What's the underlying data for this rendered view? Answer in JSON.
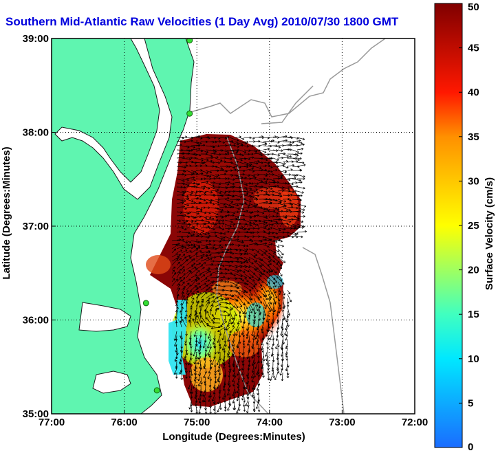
{
  "chart_data": {
    "type": "heatmap",
    "title": "Southern Mid-Atlantic Raw Velocities (1 Day Avg) 2010/07/30 1800 GMT",
    "xlabel": "Longitude (Degrees:Minutes)",
    "ylabel": "Latitude (Degrees:Minutes)",
    "xlim": [
      -77,
      -72
    ],
    "ylim": [
      35,
      39
    ],
    "x_ticks": [
      {
        "value": -77,
        "label": "77:00"
      },
      {
        "value": -76,
        "label": "76:00"
      },
      {
        "value": -75,
        "label": "75:00"
      },
      {
        "value": -74,
        "label": "74:00"
      },
      {
        "value": -73,
        "label": "73:00"
      },
      {
        "value": -72,
        "label": "72:00"
      }
    ],
    "y_ticks": [
      {
        "value": 35,
        "label": "35:00"
      },
      {
        "value": 36,
        "label": "36:00"
      },
      {
        "value": 37,
        "label": "37:00"
      },
      {
        "value": 38,
        "label": "38:00"
      },
      {
        "value": 39,
        "label": "39:00"
      }
    ],
    "grid": true,
    "colorbar": {
      "label": "Surface Velocity (cm/s)",
      "range": [
        0,
        50
      ],
      "ticks": [
        0,
        5,
        10,
        15,
        20,
        25,
        30,
        35,
        40,
        45,
        50
      ],
      "position": "right"
    },
    "colors": {
      "land": "#5ff5b0",
      "land_outline": "#1a1a1a",
      "title": "#0000dd",
      "contour": "#a0a0a0",
      "stations": "#33dd33"
    },
    "stations": [
      {
        "lon": -75.1,
        "lat": 38.98
      },
      {
        "lon": -75.1,
        "lat": 38.2
      },
      {
        "lon": -75.7,
        "lat": 36.18
      },
      {
        "lon": -75.55,
        "lat": 35.25
      }
    ]
  }
}
